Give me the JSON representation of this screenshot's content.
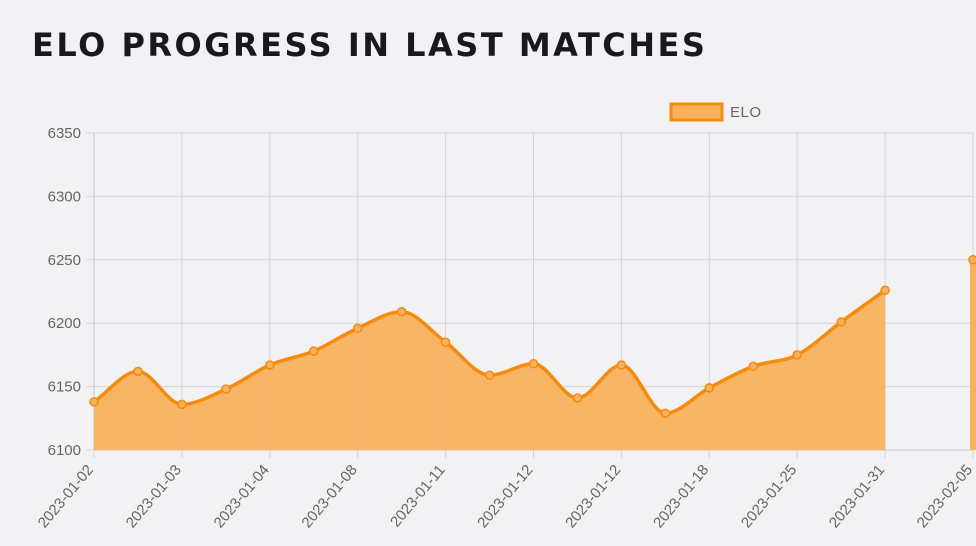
{
  "title": "ELO PROGRESS IN LAST MATCHES",
  "chart_data": {
    "type": "area",
    "legend": {
      "position": "top",
      "entries": [
        "ELO"
      ]
    },
    "x_tick_labels": [
      "2023-01-02",
      "2023-01-03",
      "2023-01-04",
      "2023-01-08",
      "2023-01-11",
      "2023-01-12",
      "2023-01-12",
      "2023-01-18",
      "2023-01-25",
      "2023-01-31",
      "2023-02-05"
    ],
    "y_ticks": [
      6100,
      6150,
      6200,
      6250,
      6300,
      6350
    ],
    "ylim": [
      6100,
      6350
    ],
    "grid": true,
    "series": [
      {
        "name": "ELO",
        "color": "#f58b0c",
        "fill": "#f9b15e",
        "values": [
          6138,
          6162,
          6136,
          6148,
          6167,
          6178,
          6196,
          6209,
          6185,
          6159,
          6168,
          6141,
          6167,
          6129,
          6149,
          6166,
          6175,
          6201,
          6226,
          null,
          6250
        ]
      }
    ]
  }
}
